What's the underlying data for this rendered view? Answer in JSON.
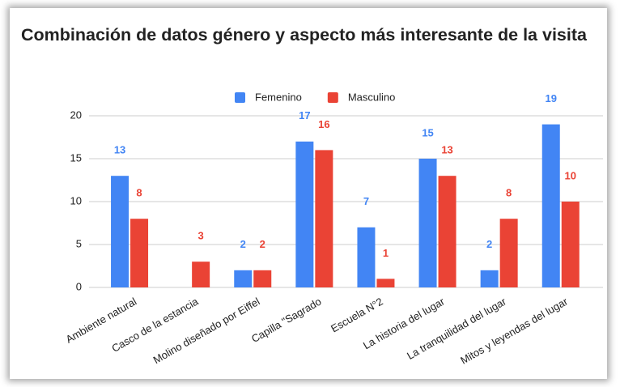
{
  "chart_data": {
    "type": "bar",
    "title": "Combinación de datos género y aspecto más interesante de la visita",
    "categories": [
      "Ambiente natural",
      "Casco de la estancia",
      "Molino diseñado por Eiffel",
      "Capilla \"Sagrado",
      "Escuela N°2",
      "La historia del lugar",
      "La tranquilidad del lugar",
      "Mitos y leyendas del lugar"
    ],
    "series": [
      {
        "name": "Femenino",
        "color": "#4285f4",
        "values": [
          13,
          null,
          2,
          17,
          7,
          15,
          2,
          19
        ]
      },
      {
        "name": "Masculino",
        "color": "#ea4335",
        "values": [
          8,
          3,
          2,
          16,
          1,
          13,
          8,
          10
        ]
      }
    ],
    "ylim": [
      0,
      20
    ],
    "yticks": [
      0,
      5,
      10,
      15,
      20
    ],
    "grid": true,
    "legend": "top"
  }
}
